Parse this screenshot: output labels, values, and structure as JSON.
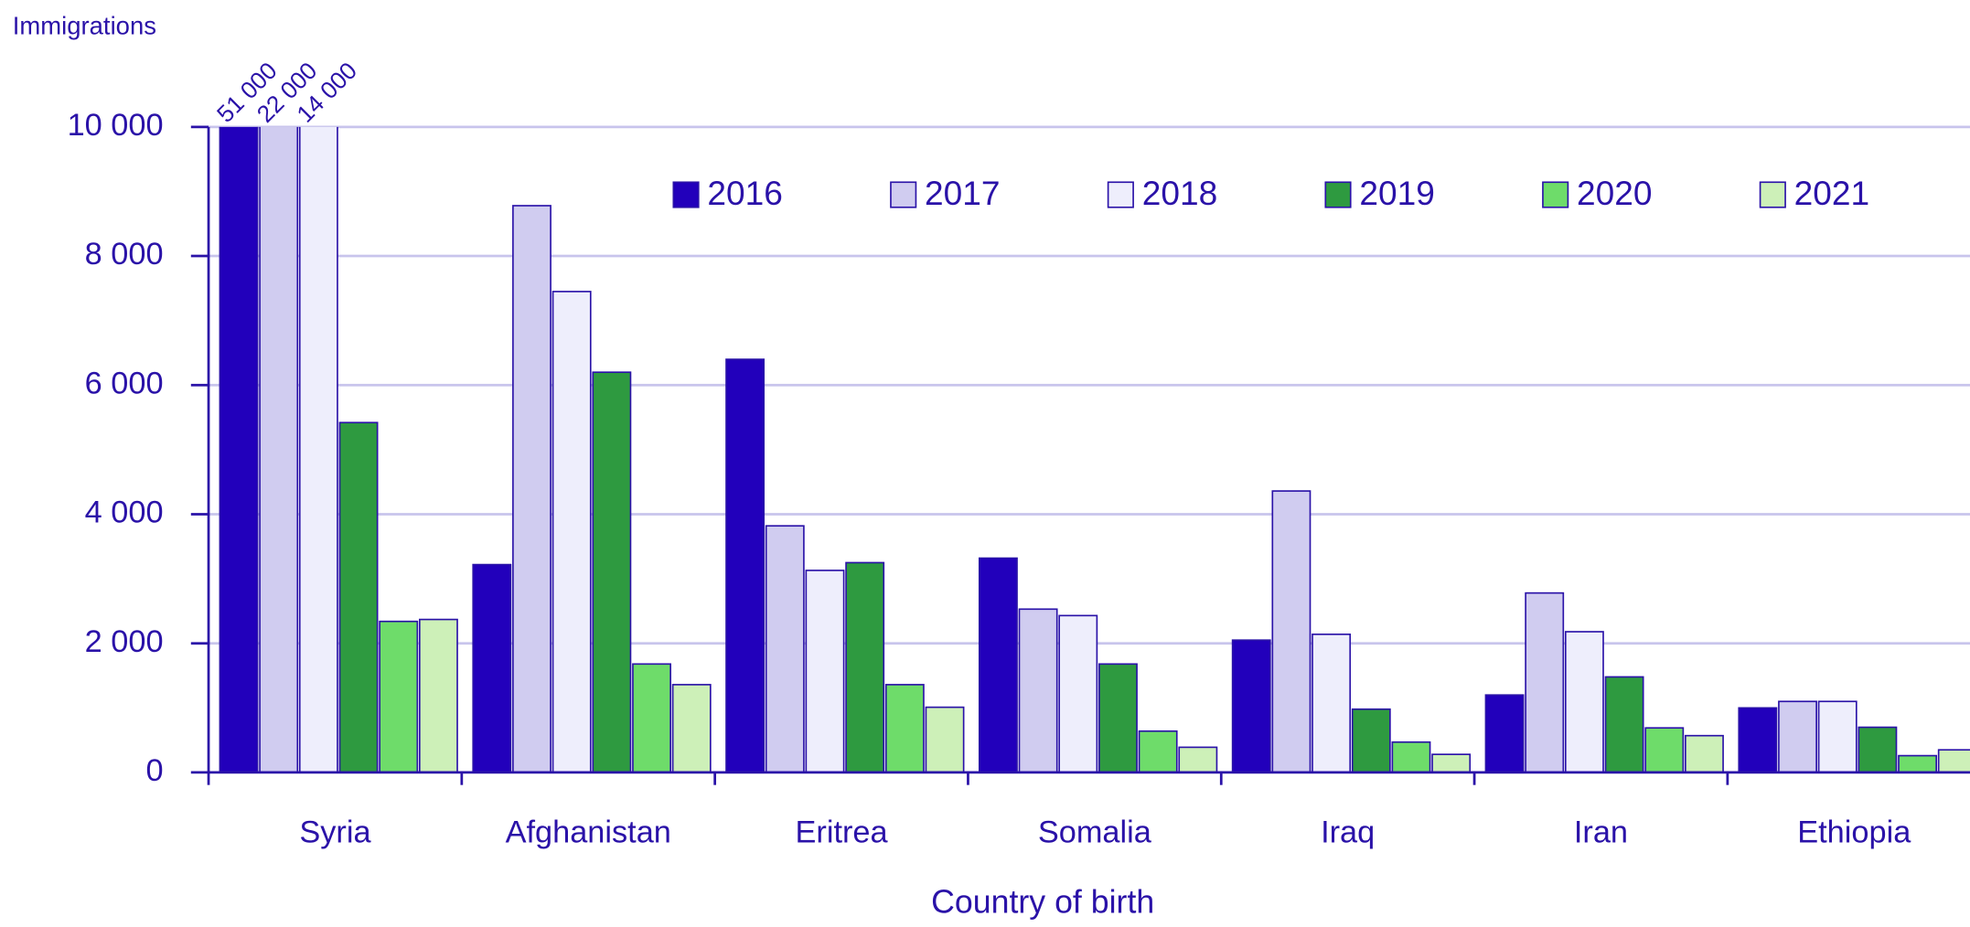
{
  "chart_data": {
    "type": "bar",
    "y_label": "Immigrations",
    "x_label": "Country of birth",
    "categories": [
      "Syria",
      "Afghanistan",
      "Eritrea",
      "Somalia",
      "Iraq",
      "Iran",
      "Ethiopia"
    ],
    "series": [
      {
        "name": "2016",
        "color": "#2200bb",
        "values": [
          51000,
          3220,
          6400,
          3320,
          2050,
          1200,
          1000
        ],
        "value_labels": [
          "51 000",
          null,
          null,
          null,
          null,
          null,
          null
        ]
      },
      {
        "name": "2017",
        "color": "#d0ccf0",
        "values": [
          22000,
          8780,
          3820,
          2530,
          4360,
          2780,
          1100
        ],
        "value_labels": [
          "22 000",
          null,
          null,
          null,
          null,
          null,
          null
        ]
      },
      {
        "name": "2018",
        "color": "#eeeefc",
        "values": [
          14000,
          7450,
          3130,
          2430,
          2140,
          2180,
          1100
        ],
        "value_labels": [
          "14 000",
          null,
          null,
          null,
          null,
          null,
          null
        ]
      },
      {
        "name": "2019",
        "color": "#2e9a40",
        "values": [
          5420,
          6200,
          3250,
          1680,
          980,
          1480,
          700
        ]
      },
      {
        "name": "2020",
        "color": "#6edc6a",
        "values": [
          2340,
          1680,
          1360,
          640,
          470,
          690,
          260
        ]
      },
      {
        "name": "2021",
        "color": "#cdf0b8",
        "values": [
          2370,
          1360,
          1010,
          390,
          280,
          570,
          350
        ]
      }
    ],
    "ylim": [
      0,
      10000
    ],
    "yticks": [
      0,
      {
        "value": 2000,
        "label": "2 000"
      },
      {
        "value": 4000,
        "label": "4 000"
      },
      {
        "value": 6000,
        "label": "6 000"
      },
      {
        "value": 8000,
        "label": "8 000"
      },
      {
        "value": 10000,
        "label": "10 000"
      }
    ],
    "grid": true,
    "legend": "top"
  }
}
